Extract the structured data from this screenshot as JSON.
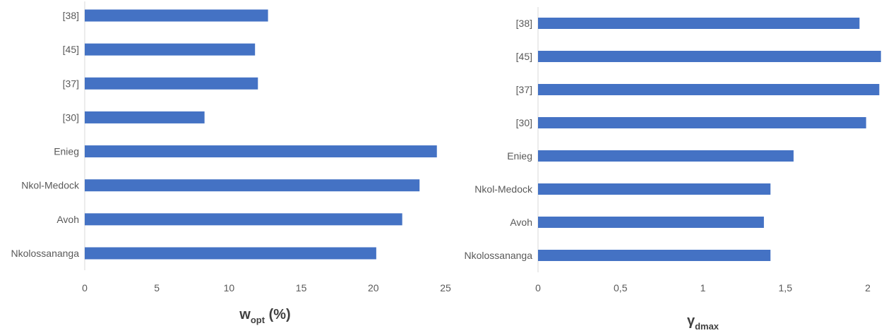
{
  "chart_data": [
    {
      "type": "bar",
      "orientation": "horizontal",
      "categories": [
        "[38]",
        "[45]",
        "[37]",
        "[30]",
        "Enieg",
        "Nkol-Medock",
        "Avoh",
        "Nkolossananga"
      ],
      "values": [
        12.7,
        11.8,
        12.0,
        8.3,
        24.4,
        23.2,
        22.0,
        20.2
      ],
      "xlabel_main": "w",
      "xlabel_sub": "opt",
      "xlabel_suffix": " (%)",
      "xlim": [
        0,
        25
      ],
      "xticks": [
        "0",
        "5",
        "10",
        "15",
        "20",
        "25"
      ],
      "grid": false,
      "bar_color": "#4472C4"
    },
    {
      "type": "bar",
      "orientation": "horizontal",
      "categories": [
        "[38]",
        "[45]",
        "[37]",
        "[30]",
        "Enieg",
        "Nkol-Medock",
        "Avoh",
        "Nkolossananga"
      ],
      "values": [
        1.95,
        2.08,
        2.07,
        1.99,
        1.55,
        1.41,
        1.37,
        1.41
      ],
      "xlabel_main": "γ",
      "xlabel_sub": "dmax",
      "xlabel_suffix": "",
      "xlim": [
        0,
        2
      ],
      "xticks": [
        "0",
        "0,5",
        "1",
        "1,5",
        "2"
      ],
      "grid": false,
      "bar_color": "#4472C4"
    }
  ]
}
